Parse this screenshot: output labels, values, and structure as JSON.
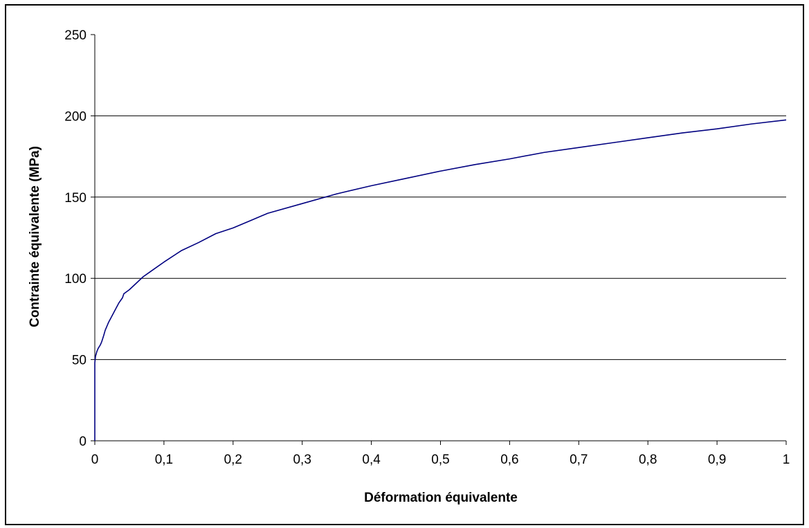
{
  "chart_data": {
    "type": "line",
    "title": "",
    "xlabel": "Déformation équivalente",
    "ylabel": "Contrainte équivalente (MPa)",
    "xlim": [
      0,
      1
    ],
    "ylim": [
      0,
      250
    ],
    "x_ticks": [
      0,
      0.1,
      0.2,
      0.3,
      0.4,
      0.5,
      0.6,
      0.7,
      0.8,
      0.9,
      1
    ],
    "x_tick_labels": [
      "0",
      "0,1",
      "0,2",
      "0,3",
      "0,4",
      "0,5",
      "0,6",
      "0,7",
      "0,8",
      "0,9",
      "1"
    ],
    "y_ticks": [
      0,
      50,
      100,
      150,
      200,
      250
    ],
    "y_tick_labels": [
      "0",
      "50",
      "100",
      "150",
      "200",
      "250"
    ],
    "grid": "horizontal",
    "legend": "none",
    "line_color": "#000080",
    "series": [
      {
        "x": [
          0,
          0,
          0.001,
          0.003,
          0.005,
          0.008,
          0.01,
          0.013,
          0.015,
          0.02,
          0.025,
          0.03,
          0.035,
          0.04,
          0.042,
          0.05,
          0.06,
          0.07,
          0.08,
          0.1,
          0.125,
          0.15,
          0.175,
          0.2,
          0.225,
          0.25,
          0.3,
          0.35,
          0.4,
          0.45,
          0.5,
          0.55,
          0.6,
          0.65,
          0.7,
          0.75,
          0.8,
          0.85,
          0.9,
          0.95,
          1
        ],
        "y": [
          0,
          48,
          52,
          55,
          57,
          59,
          61,
          65,
          68,
          73,
          77,
          81,
          85,
          88,
          90.5,
          93,
          97,
          101,
          104,
          110,
          117,
          122,
          127.5,
          131,
          135.5,
          140,
          146,
          152,
          157,
          161.5,
          166,
          170,
          173.5,
          177.5,
          180.5,
          183.5,
          186.5,
          189.5,
          192,
          195,
          197.5
        ]
      }
    ]
  }
}
